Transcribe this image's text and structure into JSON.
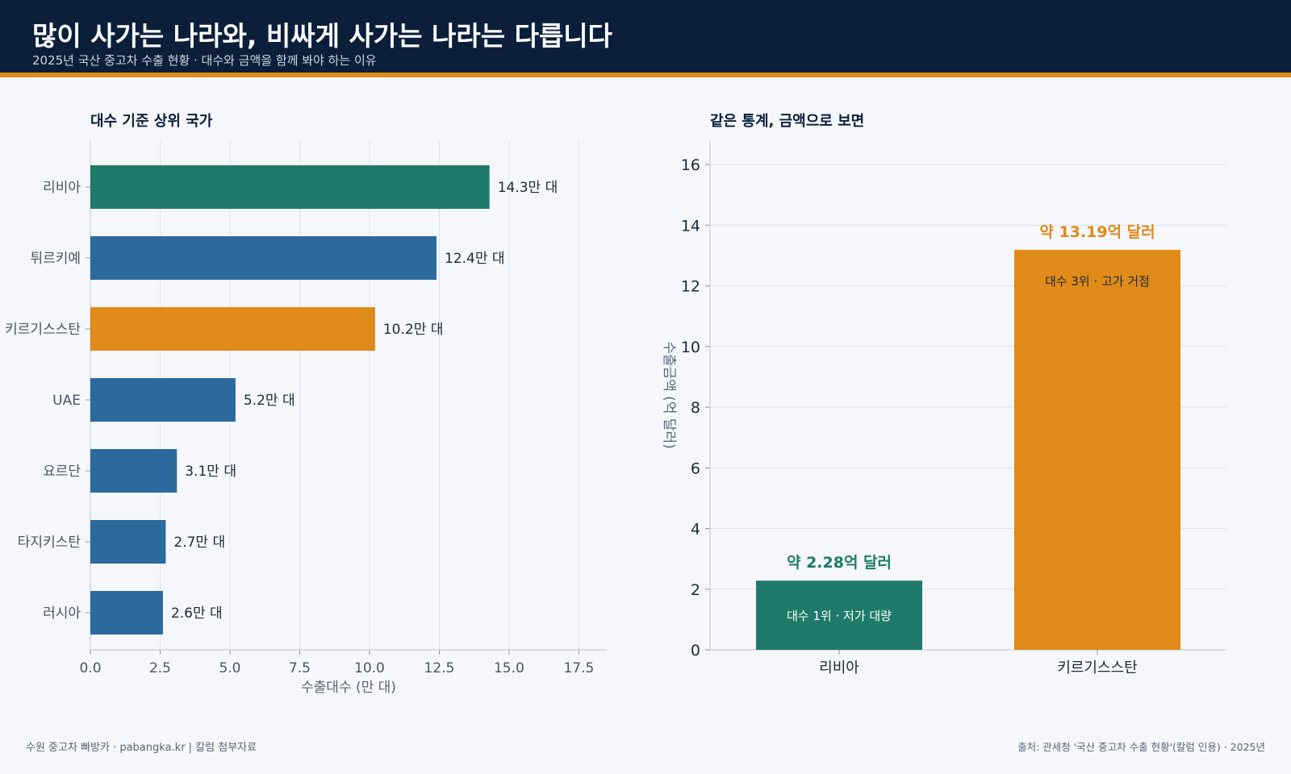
{
  "header": {
    "title": "많이 사가는 나라와, 비싸게 사가는 나라는 다릅니다",
    "subtitle": "2025년 국산 중고차 수출 현황 · 대수와 금액을 함께 봐야 하는 이유"
  },
  "footer": {
    "left": "수원 중고차 빠방카 · pabangka.kr | 칼럼 첨부자료",
    "right": "출처: 관세청 '국산 중고차 수출 현황'(칼럼 인용) · 2025년"
  },
  "colors": {
    "header_bg": "#0b1f3a",
    "accent": "#e08a1a",
    "green": "#1f7a6a",
    "blue": "#2c6a9e",
    "orange": "#e08a1a"
  },
  "chart_data": [
    {
      "type": "bar",
      "orientation": "horizontal",
      "title": "대수 기준 상위 국가",
      "xlabel": "수출대수 (만 대)",
      "ylabel": "",
      "xlim": [
        0,
        18.5
      ],
      "xticks": [
        "0.0",
        "2.5",
        "5.0",
        "7.5",
        "10.0",
        "12.5",
        "15.0",
        "17.5"
      ],
      "grid": "vertical",
      "categories": [
        "리비아",
        "튀르키예",
        "키르기스스탄",
        "UAE",
        "요르단",
        "타지키스탄",
        "러시아"
      ],
      "values": [
        14.3,
        12.4,
        10.2,
        5.2,
        3.1,
        2.7,
        2.6
      ],
      "value_labels": [
        "14.3만 대",
        "12.4만 대",
        "10.2만 대",
        "5.2만 대",
        "3.1만 대",
        "2.7만 대",
        "2.6만 대"
      ],
      "bar_colors": [
        "#1f7a6a",
        "#2c6a9e",
        "#e08a1a",
        "#2c6a9e",
        "#2c6a9e",
        "#2c6a9e",
        "#2c6a9e"
      ]
    },
    {
      "type": "bar",
      "orientation": "vertical",
      "title": "같은 통계, 금액으로 보면",
      "xlabel": "",
      "ylabel": "수출금액 (억 달러)",
      "ylim": [
        0,
        16.8
      ],
      "yticks": [
        "0",
        "2",
        "4",
        "6",
        "8",
        "10",
        "12",
        "14",
        "16"
      ],
      "grid": "horizontal",
      "categories": [
        "리비아",
        "키르기스스탄"
      ],
      "values": [
        2.28,
        13.19
      ],
      "value_labels": [
        "약 2.28억 달러",
        "약 13.19억 달러"
      ],
      "inner_labels": [
        "대수 1위 · 저가 대량",
        "대수 3위 · 고가 거점"
      ],
      "bar_colors": [
        "#1f7a6a",
        "#e08a1a"
      ]
    }
  ]
}
